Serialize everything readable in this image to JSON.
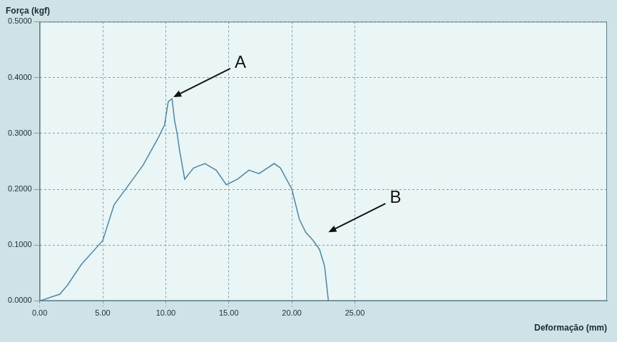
{
  "chart_data": {
    "type": "line",
    "y_label": "Força (kgf)",
    "x_label": "Deformação (mm)",
    "color": "#4f86a3",
    "grid": true,
    "x": [
      0,
      1.6,
      2.2,
      3.3,
      5.0,
      5.9,
      7.4,
      8.2,
      9.4,
      9.9,
      10.2,
      10.5,
      10.7,
      10.9,
      11.1,
      11.5,
      12.2,
      13.1,
      14.0,
      14.8,
      15.7,
      16.6,
      17.4,
      18.6,
      19.1,
      20.0,
      20.6,
      21.1,
      21.7,
      22.2,
      22.6,
      22.9
    ],
    "values": [
      0,
      0.012,
      0.028,
      0.065,
      0.108,
      0.172,
      0.218,
      0.243,
      0.292,
      0.315,
      0.357,
      0.362,
      0.323,
      0.3,
      0.269,
      0.218,
      0.238,
      0.246,
      0.234,
      0.208,
      0.218,
      0.234,
      0.228,
      0.246,
      0.238,
      0.2,
      0.146,
      0.123,
      0.108,
      0.092,
      0.062,
      0
    ],
    "xlim": [
      0,
      45
    ],
    "xticks": [
      {
        "value": 0,
        "label": "0.00"
      },
      {
        "value": 5,
        "label": "5.00"
      },
      {
        "value": 10,
        "label": "10.00"
      },
      {
        "value": 15,
        "label": "15.00"
      },
      {
        "value": 20,
        "label": "20.00"
      },
      {
        "value": 25,
        "label": "25.00"
      }
    ],
    "ylim": [
      0,
      0.5
    ],
    "yticks": [
      {
        "value": 0,
        "label": "0.0000"
      },
      {
        "value": 0.1,
        "label": "0.1000"
      },
      {
        "value": 0.2,
        "label": "0.2000"
      },
      {
        "value": 0.3,
        "label": "0.3000"
      },
      {
        "value": 0.4,
        "label": "0.4000"
      },
      {
        "value": 0.5,
        "label": "0.5000"
      }
    ],
    "annotations": [
      {
        "text": "A",
        "x": 10.6,
        "y": 0.365
      },
      {
        "text": "B",
        "x": 22.9,
        "y": 0.123
      }
    ]
  }
}
